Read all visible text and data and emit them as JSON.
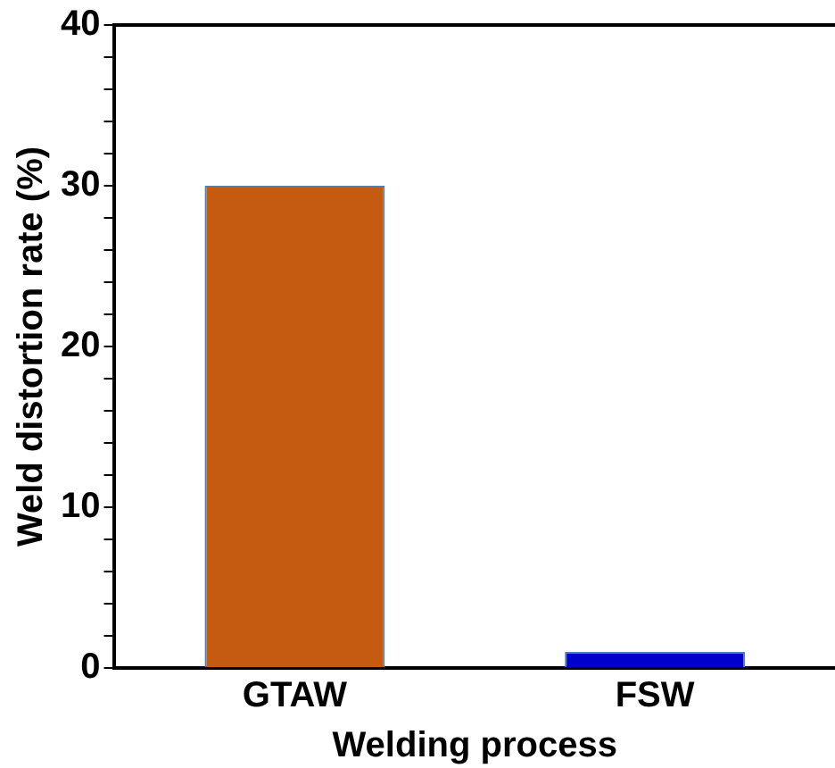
{
  "chart_data": {
    "type": "bar",
    "xlabel": "Welding process",
    "ylabel": "Weld distortion rate (%)",
    "categories": [
      "GTAW",
      "FSW"
    ],
    "values": [
      30,
      1
    ],
    "colors": [
      "#c55a11",
      "#0000cc"
    ],
    "ylim": [
      0,
      40
    ],
    "yticks": [
      0,
      {
        "value": 2,
        "label": null
      },
      {
        "value": 4,
        "label": null
      },
      {
        "value": 6,
        "label": null
      },
      {
        "value": 8,
        "label": null
      },
      10,
      {
        "value": 12,
        "label": null
      },
      {
        "value": 14,
        "label": null
      },
      {
        "value": 16,
        "label": null
      },
      {
        "value": 18,
        "label": null
      },
      20,
      {
        "value": 22,
        "label": null
      },
      {
        "value": 24,
        "label": null
      },
      {
        "value": 26,
        "label": null
      },
      {
        "value": 28,
        "label": null
      },
      30,
      {
        "value": 32,
        "label": null
      },
      {
        "value": 34,
        "label": null
      },
      {
        "value": 36,
        "label": null
      },
      {
        "value": 38,
        "label": null
      },
      40
    ],
    "grid": false,
    "legend": false
  }
}
